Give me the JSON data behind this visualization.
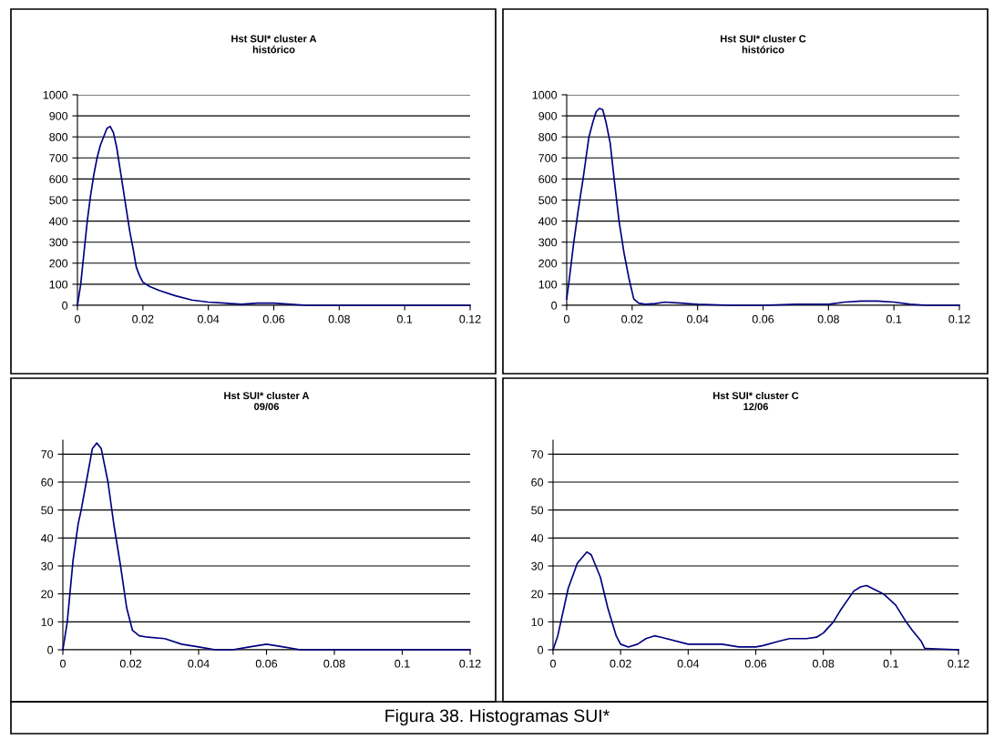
{
  "chart_data": [
    {
      "type": "line",
      "title": "Hst SUI* cluster A\nhistórico",
      "grid": "y",
      "line_style": "solid",
      "marker": "none",
      "xlim": [
        0,
        0.12
      ],
      "xticks": [
        0,
        0.02,
        0.04,
        0.06,
        0.08,
        0.1,
        0.12
      ],
      "ylim": [
        0,
        1000
      ],
      "yticks": [
        0,
        100,
        200,
        300,
        400,
        500,
        600,
        700,
        800,
        900,
        1000
      ],
      "series": [
        {
          "color": "#000080",
          "x": [
            0,
            0.001,
            0.002,
            0.003,
            0.004,
            0.005,
            0.006,
            0.007,
            0.008,
            0.009,
            0.01,
            0.011,
            0.012,
            0.013,
            0.014,
            0.015,
            0.016,
            0.017,
            0.018,
            0.019,
            0.02,
            0.022,
            0.025,
            0.03,
            0.035,
            0.04,
            0.045,
            0.05,
            0.055,
            0.06,
            0.065,
            0.07,
            0.08,
            0.09,
            0.1,
            0.11,
            0.12
          ],
          "values": [
            0,
            100,
            250,
            400,
            520,
            620,
            700,
            760,
            800,
            840,
            850,
            820,
            750,
            650,
            550,
            450,
            350,
            270,
            180,
            140,
            110,
            90,
            70,
            45,
            25,
            15,
            10,
            5,
            10,
            10,
            5,
            0,
            0,
            0,
            0,
            0,
            0
          ]
        }
      ]
    },
    {
      "type": "line",
      "title": "Hst SUI* cluster C\nhistórico",
      "grid": "y",
      "line_style": "solid",
      "marker": "none",
      "xlim": [
        0,
        0.12
      ],
      "xticks": [
        0,
        0.02,
        0.04,
        0.06,
        0.08,
        0.1,
        0.12
      ],
      "ylim": [
        0,
        1000
      ],
      "yticks": [
        0,
        100,
        200,
        300,
        400,
        500,
        600,
        700,
        800,
        900,
        1000
      ],
      "series": [
        {
          "color": "#000080",
          "x": [
            0,
            0.001,
            0.002,
            0.0035,
            0.005,
            0.0068,
            0.008,
            0.009,
            0.01,
            0.011,
            0.012,
            0.0133,
            0.0145,
            0.016,
            0.0175,
            0.019,
            0.0205,
            0.022,
            0.024,
            0.027,
            0.03,
            0.035,
            0.04,
            0.05,
            0.06,
            0.07,
            0.08,
            0.085,
            0.09,
            0.095,
            0.1,
            0.105,
            0.11,
            0.12
          ],
          "values": [
            30,
            150,
            280,
            450,
            600,
            800,
            870,
            920,
            935,
            930,
            870,
            770,
            600,
            400,
            250,
            130,
            30,
            10,
            5,
            8,
            15,
            10,
            5,
            0,
            0,
            5,
            5,
            15,
            20,
            20,
            15,
            5,
            0,
            0
          ]
        }
      ]
    },
    {
      "type": "line",
      "title": "Hst SUI* cluster A\n09/06",
      "grid": "y",
      "line_style": "solid",
      "marker": "none",
      "xlim": [
        0,
        0.12
      ],
      "xticks": [
        0,
        0.02,
        0.04,
        0.06,
        0.08,
        0.1,
        0.12
      ],
      "ylim": [
        0,
        75
      ],
      "yticks": [
        0,
        10,
        20,
        30,
        40,
        50,
        60,
        70
      ],
      "series": [
        {
          "color": "#000080",
          "x": [
            0,
            0.0013,
            0.003,
            0.0045,
            0.0054,
            0.0069,
            0.0087,
            0.01,
            0.0113,
            0.0133,
            0.015,
            0.017,
            0.0188,
            0.0205,
            0.0225,
            0.025,
            0.03,
            0.035,
            0.04,
            0.045,
            0.05,
            0.055,
            0.06,
            0.065,
            0.07,
            0.08,
            0.09,
            0.1,
            0.11,
            0.12
          ],
          "values": [
            0,
            10,
            32,
            45,
            50,
            60,
            72,
            74,
            72,
            60,
            45,
            30,
            15,
            7,
            5,
            4.5,
            4,
            2,
            1,
            0,
            0,
            1,
            2,
            1,
            0,
            0,
            0,
            0,
            0,
            0
          ]
        }
      ]
    },
    {
      "type": "line",
      "title": "Hst SUI* cluster C\n12/06",
      "grid": "y",
      "line_style": "solid",
      "marker": "none",
      "xlim": [
        0,
        0.12
      ],
      "xticks": [
        0,
        0.02,
        0.04,
        0.06,
        0.08,
        0.1,
        0.12
      ],
      "ylim": [
        0,
        75
      ],
      "yticks": [
        0,
        10,
        20,
        30,
        40,
        50,
        60,
        70
      ],
      "annotations": [
        "Figura 38. Histogramas SUI*"
      ],
      "series": [
        {
          "color": "#000080",
          "x": [
            0,
            0.0014,
            0.0045,
            0.0072,
            0.01,
            0.0113,
            0.014,
            0.0162,
            0.0187,
            0.02,
            0.0223,
            0.025,
            0.0275,
            0.03,
            0.032,
            0.04,
            0.05,
            0.055,
            0.06,
            0.0622,
            0.0667,
            0.07,
            0.075,
            0.078,
            0.08,
            0.083,
            0.085,
            0.089,
            0.091,
            0.0928,
            0.0978,
            0.1014,
            0.1045,
            0.1063,
            0.109,
            0.11,
            0.12
          ],
          "values": [
            0,
            5,
            22,
            31,
            35,
            34,
            26,
            15,
            5,
            2,
            1,
            2,
            4,
            5,
            4.5,
            2,
            2,
            1,
            1,
            1.5,
            3,
            4,
            4,
            4.5,
            6,
            10,
            14,
            21,
            22.5,
            23,
            20,
            16,
            10,
            7,
            3,
            0.5,
            0
          ]
        }
      ]
    }
  ]
}
